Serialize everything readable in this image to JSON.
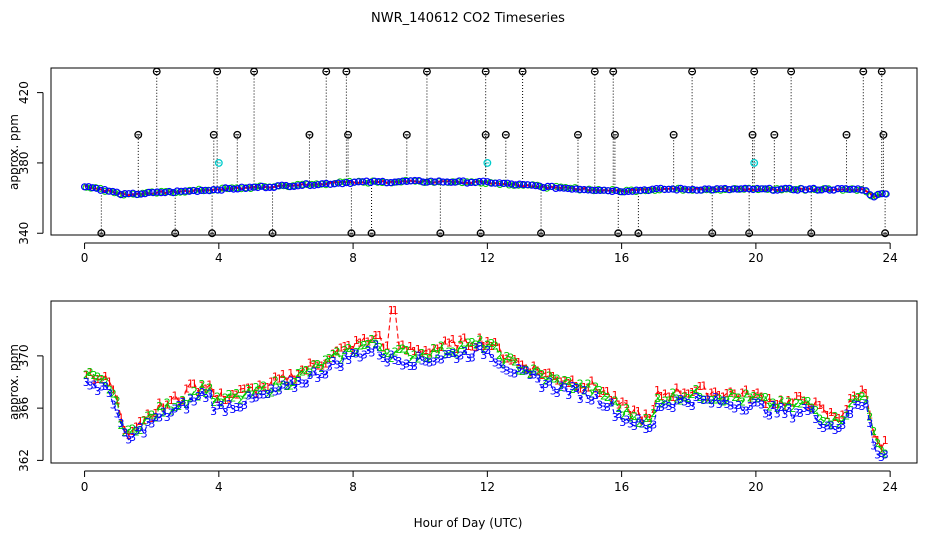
{
  "figure": {
    "title": "NWR_140612  CO2 Timeseries",
    "xlabel": "Hour of Day (UTC)"
  },
  "colors": {
    "series1": "#ff0000",
    "series2": "#00cc00",
    "series3": "#0000ff",
    "flask": "#000000",
    "reference": "#00cccc"
  },
  "chart_data": [
    {
      "type": "scatter",
      "panel": "top",
      "title": "NWR_140612  CO2 Timeseries",
      "ylabel": "approx. ppm",
      "xlabel": "",
      "xlim": [
        -1,
        24.8
      ],
      "ylim": [
        339,
        434
      ],
      "x_ticks": [
        0,
        4,
        8,
        12,
        16,
        20,
        24
      ],
      "y_ticks": [
        340,
        380,
        420
      ],
      "baseline_knots": [
        [
          0,
          367
        ],
        [
          1.2,
          362
        ],
        [
          4,
          365
        ],
        [
          8,
          369
        ],
        [
          10,
          369.5
        ],
        [
          12,
          369
        ],
        [
          14,
          366
        ],
        [
          16,
          364
        ],
        [
          17,
          365
        ],
        [
          20,
          365
        ],
        [
          23.2,
          365
        ],
        [
          23.5,
          361
        ],
        [
          23.9,
          363
        ]
      ],
      "spikes_high": [
        2.15,
        3.95,
        5.05,
        7.2,
        7.8,
        10.2,
        11.95,
        13.05,
        15.2,
        15.75,
        18.1,
        19.95,
        21.05,
        23.2,
        23.75
      ],
      "spikes_mid": [
        1.6,
        3.85,
        4.55,
        6.7,
        7.85,
        9.6,
        11.95,
        12.55,
        14.7,
        15.8,
        17.55,
        19.9,
        20.55,
        22.7,
        23.8
      ],
      "spikes_low": [
        0.5,
        2.7,
        3.8,
        5.6,
        7.95,
        8.55,
        10.6,
        11.8,
        13.6,
        15.9,
        16.5,
        18.7,
        19.8,
        21.65,
        23.85
      ],
      "reference_points": [
        [
          4.0,
          380
        ],
        [
          12.0,
          380
        ],
        [
          19.95,
          380
        ]
      ],
      "high_value": 432,
      "mid_value": 396,
      "low_value": 340
    },
    {
      "type": "line",
      "panel": "bottom",
      "ylabel": "approx. ppm",
      "xlabel": "Hour of Day (UTC)",
      "xlim": [
        -1,
        24.8
      ],
      "ylim": [
        361.8,
        374.2
      ],
      "x_ticks": [
        0,
        4,
        8,
        12,
        16,
        20,
        24
      ],
      "y_ticks": [
        362,
        366,
        370
      ],
      "series": [
        {
          "name": "1",
          "marker": "1",
          "offset": 0.5
        },
        {
          "name": "2",
          "marker": "2",
          "offset": 0.2
        },
        {
          "name": "3",
          "marker": "3",
          "offset": -0.3
        }
      ],
      "baseline_knots": [
        [
          0.05,
          368.3
        ],
        [
          0.8,
          367.4
        ],
        [
          1.1,
          364.8
        ],
        [
          1.25,
          363.6
        ],
        [
          1.5,
          364.3
        ],
        [
          2.0,
          365.2
        ],
        [
          2.5,
          365.9
        ],
        [
          3.0,
          366.5
        ],
        [
          3.5,
          367.3
        ],
        [
          3.7,
          367.4
        ],
        [
          3.9,
          366.2
        ],
        [
          4.3,
          366.5
        ],
        [
          5.0,
          366.9
        ],
        [
          6.0,
          367.8
        ],
        [
          7.0,
          369.0
        ],
        [
          7.8,
          370.1
        ],
        [
          8.3,
          370.6
        ],
        [
          8.7,
          370.8
        ],
        [
          9.0,
          370.1
        ],
        [
          10.0,
          369.9
        ],
        [
          11.0,
          370.4
        ],
        [
          12.0,
          370.7
        ],
        [
          12.5,
          369.6
        ],
        [
          13.0,
          368.9
        ],
        [
          14.0,
          367.9
        ],
        [
          15.0,
          367.3
        ],
        [
          15.5,
          366.8
        ],
        [
          16.0,
          365.6
        ],
        [
          16.5,
          365.1
        ],
        [
          16.9,
          364.5
        ],
        [
          17.05,
          366.5
        ],
        [
          18.0,
          366.9
        ],
        [
          19.0,
          366.7
        ],
        [
          19.9,
          366.5
        ],
        [
          20.5,
          366.1
        ],
        [
          21.0,
          365.9
        ],
        [
          21.5,
          366.2
        ],
        [
          22.0,
          365.2
        ],
        [
          22.4,
          364.8
        ],
        [
          22.7,
          365.5
        ],
        [
          23.0,
          366.6
        ],
        [
          23.3,
          366.8
        ],
        [
          23.55,
          363.2
        ],
        [
          23.7,
          362.3
        ],
        [
          23.9,
          362.9
        ]
      ],
      "spike_events": [
        [
          8.7,
          371.6
        ],
        [
          9.2,
          373.5
        ],
        [
          3.2,
          367.9
        ],
        [
          5.4,
          367.6
        ]
      ]
    }
  ]
}
